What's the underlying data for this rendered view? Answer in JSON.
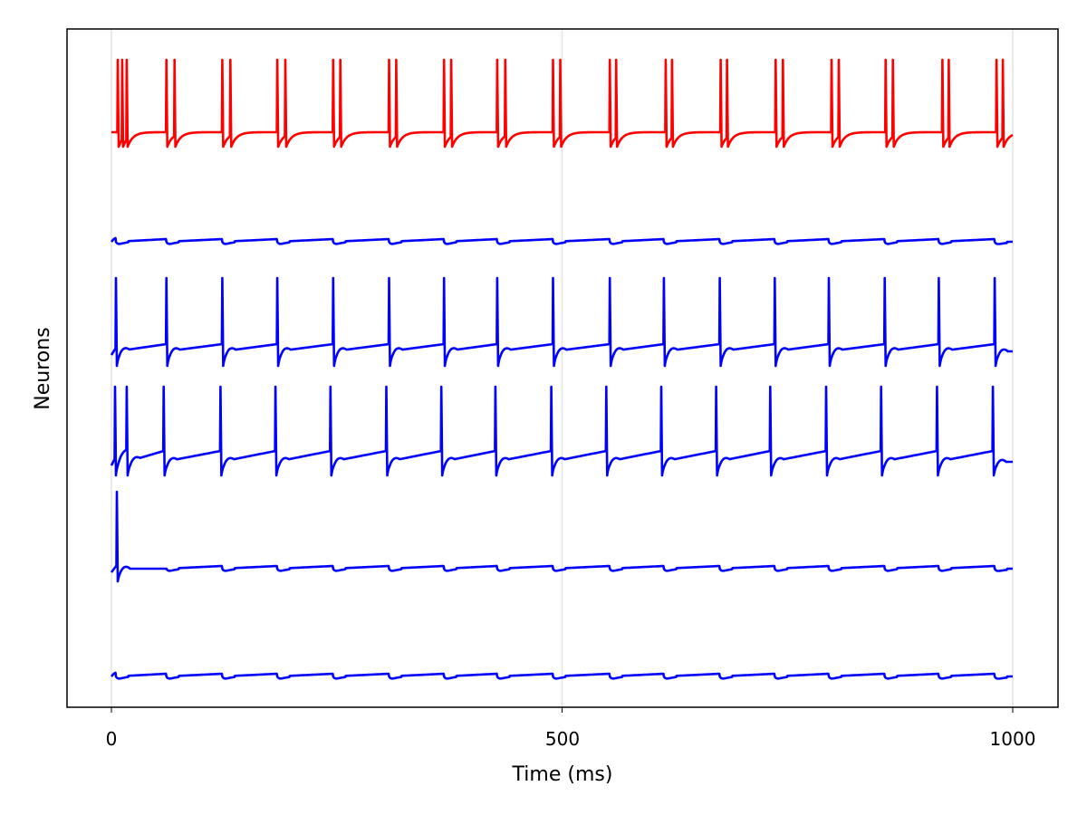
{
  "chart_data": {
    "type": "line",
    "title": "",
    "xlabel": "Time (ms)",
    "ylabel": "Neurons",
    "xlim": [
      -50,
      1050
    ],
    "xticks": [
      0,
      500,
      1000
    ],
    "xtick_labels": [
      "0",
      "500",
      "1000"
    ],
    "grid": "vertical at x ticks",
    "legend": "none",
    "series": [
      {
        "color": "#ff0000",
        "kind": "spiking",
        "spike_times_ms": [
          7,
          12,
          17,
          61,
          70,
          123,
          132,
          184,
          193,
          246,
          254,
          308,
          316,
          369,
          377,
          428,
          437,
          490,
          498,
          553,
          560,
          615,
          622,
          676,
          683,
          737,
          745,
          799,
          807,
          859,
          867,
          922,
          929,
          982,
          989
        ]
      },
      {
        "color": "#0000ff",
        "kind": "subthreshold",
        "input_times_ms": [
          5,
          61,
          123,
          184,
          246,
          308,
          369,
          428,
          490,
          553,
          613,
          675,
          736,
          796,
          858,
          918,
          980
        ]
      },
      {
        "color": "#0000ff",
        "kind": "spiking",
        "spike_times_ms": [
          5,
          61,
          123,
          184,
          246,
          308,
          369,
          428,
          490,
          553,
          613,
          675,
          736,
          796,
          858,
          918,
          980
        ]
      },
      {
        "color": "#0000ff",
        "kind": "spiking",
        "spike_times_ms": [
          4,
          17,
          58,
          121,
          182,
          243,
          305,
          366,
          426,
          488,
          549,
          610,
          671,
          731,
          793,
          854,
          916,
          978
        ]
      },
      {
        "color": "#0000ff",
        "kind": "spiking-once",
        "spike_times_ms": [
          6
        ],
        "input_times_ms": [
          61,
          123,
          184,
          246,
          308,
          369,
          428,
          490,
          553,
          613,
          675,
          736,
          796,
          858,
          918,
          980
        ]
      },
      {
        "color": "#0000ff",
        "kind": "subthreshold",
        "input_times_ms": [
          5,
          61,
          123,
          184,
          246,
          308,
          369,
          428,
          490,
          553,
          613,
          675,
          736,
          796,
          858,
          918,
          980
        ]
      }
    ]
  }
}
